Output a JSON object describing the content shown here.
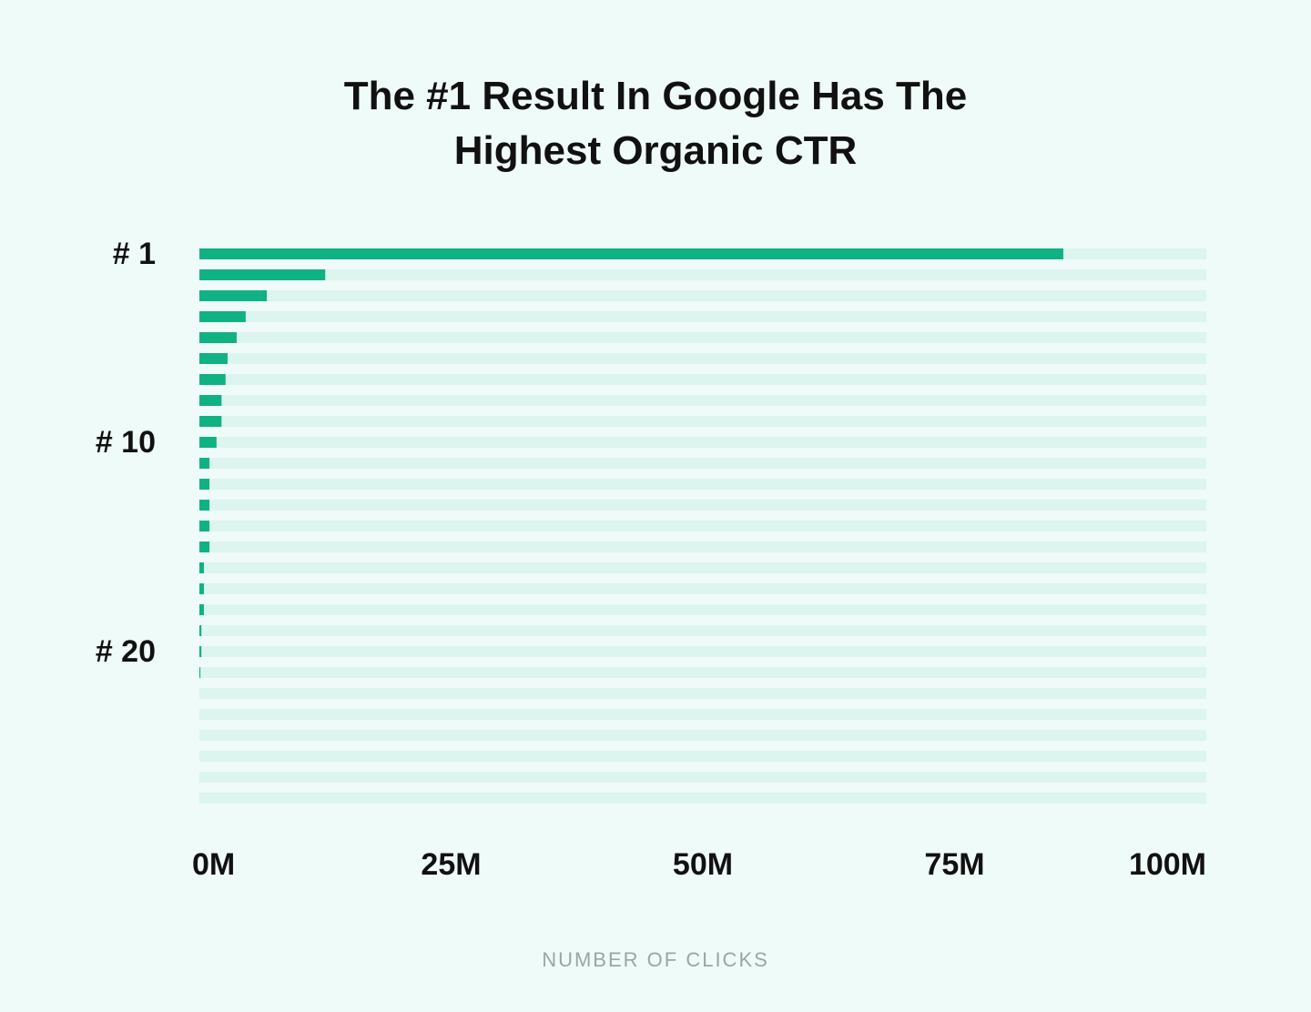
{
  "chart_data": {
    "type": "bar",
    "orientation": "horizontal",
    "title": "The #1 Result In Google Has The Highest Organic CTR",
    "x_label": "NUMBER OF CLICKS",
    "categories": [
      "# 1",
      null,
      null,
      null,
      null,
      null,
      null,
      null,
      null,
      "# 10",
      null,
      null,
      null,
      null,
      null,
      null,
      null,
      null,
      null,
      "# 20",
      null,
      null,
      null,
      null,
      null,
      null,
      null
    ],
    "values": [
      85.8,
      12.5,
      6.7,
      4.6,
      3.7,
      2.8,
      2.6,
      2.2,
      2.2,
      1.7,
      1.0,
      1.0,
      1.0,
      1.0,
      1.0,
      0.45,
      0.45,
      0.45,
      0.2,
      0.2,
      0.1,
      null,
      null,
      null,
      null,
      null,
      null
    ],
    "color": "#10b284",
    "track_color": "#dcf5ee",
    "xlim": [
      0,
      100
    ],
    "xticks": [
      {
        "value": 0,
        "label": "0M"
      },
      {
        "value": 25,
        "label": "25M"
      },
      {
        "value": 50,
        "label": "50M"
      },
      {
        "value": 75,
        "label": "75M"
      },
      {
        "value": 100,
        "label": "100M"
      }
    ],
    "grid": false
  }
}
